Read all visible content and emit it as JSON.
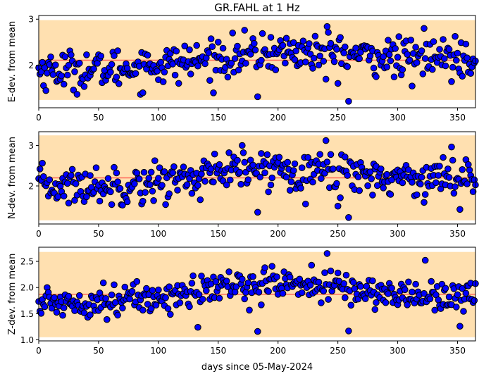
{
  "figure": {
    "title": "GR.FAHL at 1 Hz",
    "xlabel": "days since 05-May-2024"
  },
  "colors": {
    "band": "#ffe0b0",
    "mean_line": "#ff6a5a",
    "marker_fill": "#0000ff",
    "marker_edge": "#000000"
  },
  "chart_data": [
    {
      "type": "scatter",
      "ylabel": "E-dev. from mean",
      "xlim": [
        0,
        365
      ],
      "ylim": [
        1.08,
        3.08
      ],
      "xticks": [
        0,
        50,
        100,
        150,
        200,
        250,
        300,
        350
      ],
      "yticks": [
        2,
        3
      ],
      "band": [
        1.25,
        2.98
      ],
      "mean": 2.11,
      "n_points": 366,
      "trend": [
        [
          0,
          1.9
        ],
        [
          50,
          1.9
        ],
        [
          100,
          2.0
        ],
        [
          150,
          2.15
        ],
        [
          200,
          2.3
        ],
        [
          250,
          2.25
        ],
        [
          300,
          2.15
        ],
        [
          365,
          2.2
        ]
      ],
      "spread": 0.28,
      "outliers": [
        [
          183,
          1.32
        ],
        [
          259,
          1.22
        ],
        [
          241,
          2.84
        ],
        [
          322,
          2.8
        ],
        [
          240,
          1.7
        ],
        [
          312,
          1.55
        ]
      ]
    },
    {
      "type": "scatter",
      "ylabel": "N-dev. from mean",
      "xlim": [
        0,
        365
      ],
      "ylim": [
        1.06,
        3.34
      ],
      "xticks": [
        0,
        50,
        100,
        150,
        200,
        250,
        300,
        350
      ],
      "yticks": [
        2,
        3
      ],
      "band": [
        1.15,
        3.25
      ],
      "mean": 2.2,
      "n_points": 366,
      "trend": [
        [
          0,
          2.0
        ],
        [
          50,
          2.0
        ],
        [
          100,
          2.1
        ],
        [
          150,
          2.3
        ],
        [
          200,
          2.45
        ],
        [
          250,
          2.35
        ],
        [
          300,
          2.2
        ],
        [
          365,
          2.25
        ]
      ],
      "spread": 0.32,
      "outliers": [
        [
          183,
          1.35
        ],
        [
          259,
          1.22
        ],
        [
          240,
          3.12
        ],
        [
          170,
          3.0
        ],
        [
          352,
          1.42
        ],
        [
          250,
          1.5
        ]
      ]
    },
    {
      "type": "scatter",
      "ylabel": "Z-dev. from mean",
      "xlim": [
        0,
        365
      ],
      "ylim": [
        0.98,
        2.77
      ],
      "xticks": [
        0,
        50,
        100,
        150,
        200,
        250,
        300,
        350
      ],
      "yticks": [
        1.0,
        1.5,
        2.0,
        2.5
      ],
      "ytick_labels": [
        "1.0",
        "1.5",
        "2.0",
        "2.5"
      ],
      "band": [
        1.05,
        2.68
      ],
      "mean": 1.87,
      "n_points": 366,
      "trend": [
        [
          0,
          1.7
        ],
        [
          50,
          1.75
        ],
        [
          100,
          1.8
        ],
        [
          150,
          2.0
        ],
        [
          200,
          2.1
        ],
        [
          250,
          2.0
        ],
        [
          300,
          1.85
        ],
        [
          365,
          1.85
        ]
      ],
      "spread": 0.2,
      "outliers": [
        [
          183,
          1.16
        ],
        [
          241,
          2.65
        ],
        [
          323,
          2.52
        ],
        [
          352,
          1.26
        ],
        [
          133,
          1.24
        ],
        [
          259,
          1.17
        ]
      ]
    }
  ]
}
